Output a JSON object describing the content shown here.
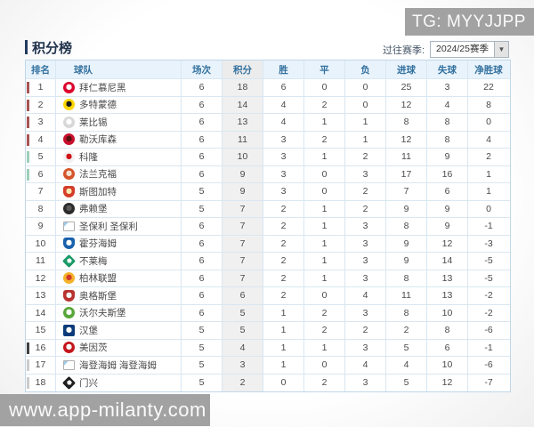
{
  "watermarks": {
    "top": "TG: MYYJJPP",
    "bottom": "www.app-milanty.com"
  },
  "header": {
    "title": "积分榜",
    "season_label": "过往赛季:",
    "season_value": "2024/25赛季",
    "dropdown_arrow": "▼"
  },
  "colors": {
    "accent": "#33719f",
    "zone_ucl": "#a85454",
    "zone_uel": "#9ccfb9",
    "zone_playoff": "#404040",
    "zone_releg": "#cbcbcb",
    "points_col_bg": "#f0f0f0",
    "watermark_bg": "#a2a2a2"
  },
  "table": {
    "columns": [
      "排名",
      "球队",
      "场次",
      "积分",
      "胜",
      "平",
      "负",
      "进球",
      "失球",
      "净胜球"
    ],
    "rows": [
      {
        "rank": "1",
        "team": "拜仁慕尼黑",
        "played": "6",
        "points": "18",
        "win": "6",
        "draw": "0",
        "loss": "0",
        "gf": "25",
        "ga": "3",
        "gd": "22",
        "zone": "ucl",
        "logo": {
          "shape": "circle",
          "c1": "#dc052d",
          "c2": "#ffffff"
        }
      },
      {
        "rank": "2",
        "team": "多特蒙德",
        "played": "6",
        "points": "14",
        "win": "4",
        "draw": "2",
        "loss": "0",
        "gf": "12",
        "ga": "4",
        "gd": "8",
        "zone": "ucl",
        "logo": {
          "shape": "circle",
          "c1": "#ffd600",
          "c2": "#1a1a1a"
        }
      },
      {
        "rank": "3",
        "team": "莱比锡",
        "played": "6",
        "points": "13",
        "win": "4",
        "draw": "1",
        "loss": "1",
        "gf": "8",
        "ga": "8",
        "gd": "0",
        "zone": "ucl",
        "logo": {
          "shape": "circle",
          "c1": "#d8d8d8",
          "c2": "#ffffff"
        }
      },
      {
        "rank": "4",
        "team": "勒沃库森",
        "played": "6",
        "points": "11",
        "win": "3",
        "draw": "2",
        "loss": "1",
        "gf": "12",
        "ga": "8",
        "gd": "4",
        "zone": "ucl",
        "logo": {
          "shape": "circle",
          "c1": "#c8102e",
          "c2": "#57120e"
        }
      },
      {
        "rank": "5",
        "team": "科隆",
        "played": "6",
        "points": "10",
        "win": "3",
        "draw": "1",
        "loss": "2",
        "gf": "11",
        "ga": "9",
        "gd": "2",
        "zone": "uel",
        "logo": {
          "shape": "circle",
          "c1": "#f2f2f2",
          "c2": "#d01317"
        }
      },
      {
        "rank": "6",
        "team": "法兰克福",
        "played": "6",
        "points": "9",
        "win": "3",
        "draw": "0",
        "loss": "3",
        "gf": "17",
        "ga": "16",
        "gd": "1",
        "zone": "uel",
        "logo": {
          "shape": "circle",
          "c1": "#d5542c",
          "c2": "#f3e4d2"
        }
      },
      {
        "rank": "7",
        "team": "斯图加特",
        "played": "5",
        "points": "9",
        "win": "3",
        "draw": "0",
        "loss": "2",
        "gf": "7",
        "ga": "6",
        "gd": "1",
        "zone": "",
        "logo": {
          "shape": "crest",
          "c1": "#d43c2a",
          "c2": "#f6e9b0"
        }
      },
      {
        "rank": "8",
        "team": "弗赖堡",
        "played": "5",
        "points": "7",
        "win": "2",
        "draw": "1",
        "loss": "2",
        "gf": "9",
        "ga": "9",
        "gd": "0",
        "zone": "",
        "logo": {
          "shape": "circle",
          "c1": "#2b2b2b",
          "c2": "#5a5a5a"
        }
      },
      {
        "rank": "9",
        "team": "圣保利 圣保利",
        "played": "6",
        "points": "7",
        "win": "2",
        "draw": "1",
        "loss": "3",
        "gf": "8",
        "ga": "9",
        "gd": "-1",
        "zone": "",
        "logo": {
          "shape": "broken",
          "c1": "#ffffff",
          "c2": "#9ecbe8"
        }
      },
      {
        "rank": "10",
        "team": "霍芬海姆",
        "played": "6",
        "points": "7",
        "win": "2",
        "draw": "1",
        "loss": "3",
        "gf": "9",
        "ga": "12",
        "gd": "-3",
        "zone": "",
        "logo": {
          "shape": "crest",
          "c1": "#1861ac",
          "c2": "#ffffff"
        }
      },
      {
        "rank": "11",
        "team": "不莱梅",
        "played": "6",
        "points": "7",
        "win": "2",
        "draw": "1",
        "loss": "3",
        "gf": "9",
        "ga": "14",
        "gd": "-5",
        "zone": "",
        "logo": {
          "shape": "diamond",
          "c1": "#1a9a67",
          "c2": "#ffffff"
        }
      },
      {
        "rank": "12",
        "team": "柏林联盟",
        "played": "6",
        "points": "7",
        "win": "2",
        "draw": "1",
        "loss": "3",
        "gf": "8",
        "ga": "13",
        "gd": "-5",
        "zone": "",
        "logo": {
          "shape": "circle",
          "c1": "#f3b229",
          "c2": "#d03a2b"
        }
      },
      {
        "rank": "13",
        "team": "奥格斯堡",
        "played": "6",
        "points": "6",
        "win": "2",
        "draw": "0",
        "loss": "4",
        "gf": "11",
        "ga": "13",
        "gd": "-2",
        "zone": "",
        "logo": {
          "shape": "crest",
          "c1": "#b8322f",
          "c2": "#f5f5f5"
        }
      },
      {
        "rank": "14",
        "team": "沃尔夫斯堡",
        "played": "6",
        "points": "5",
        "win": "1",
        "draw": "2",
        "loss": "3",
        "gf": "8",
        "ga": "10",
        "gd": "-2",
        "zone": "",
        "logo": {
          "shape": "circle",
          "c1": "#57a639",
          "c2": "#ffffff"
        }
      },
      {
        "rank": "15",
        "team": "汉堡",
        "played": "5",
        "points": "5",
        "win": "1",
        "draw": "2",
        "loss": "2",
        "gf": "2",
        "ga": "8",
        "gd": "-6",
        "zone": "",
        "logo": {
          "shape": "square",
          "c1": "#0b3b7a",
          "c2": "#ffffff"
        }
      },
      {
        "rank": "16",
        "team": "美因茨",
        "played": "5",
        "points": "4",
        "win": "1",
        "draw": "1",
        "loss": "3",
        "gf": "5",
        "ga": "6",
        "gd": "-1",
        "zone": "playoff",
        "logo": {
          "shape": "circle",
          "c1": "#c3161c",
          "c2": "#ffffff"
        }
      },
      {
        "rank": "17",
        "team": "海登海姆 海登海姆",
        "played": "5",
        "points": "3",
        "win": "1",
        "draw": "0",
        "loss": "4",
        "gf": "4",
        "ga": "10",
        "gd": "-6",
        "zone": "releg",
        "logo": {
          "shape": "broken",
          "c1": "#ffffff",
          "c2": "#9ecbe8"
        }
      },
      {
        "rank": "18",
        "team": "门兴",
        "played": "5",
        "points": "2",
        "win": "0",
        "draw": "2",
        "loss": "3",
        "gf": "5",
        "ga": "12",
        "gd": "-7",
        "zone": "releg",
        "logo": {
          "shape": "diamond",
          "c1": "#1f1f1f",
          "c2": "#ffffff"
        }
      }
    ]
  }
}
